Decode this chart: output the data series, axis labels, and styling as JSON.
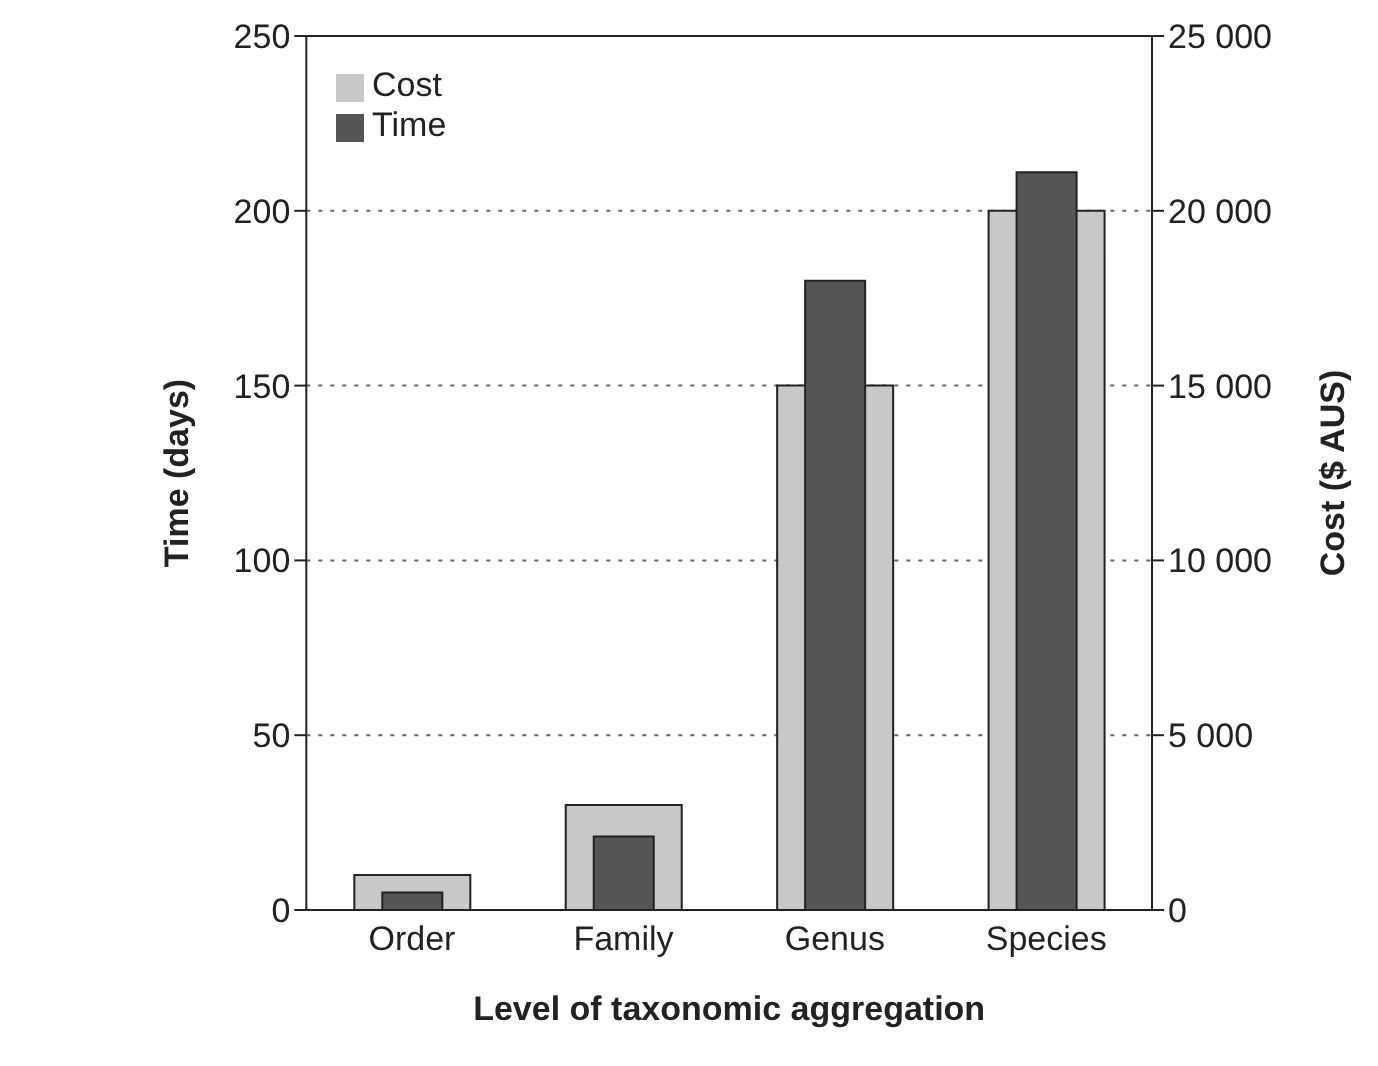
{
  "chart_data": {
    "type": "bar",
    "xlabel": "Level of taxonomic aggregation",
    "ylabel": "Time (days)",
    "y2label": "Cost ($ AUS)",
    "categories": [
      "Order",
      "Family",
      "Genus",
      "Species"
    ],
    "series": [
      {
        "name": "Cost",
        "color": "#c8c8c8",
        "values": [
          1000,
          3000,
          15000,
          20000
        ],
        "axis": "y2"
      },
      {
        "name": "Time",
        "color": "#555555",
        "values": [
          5,
          21,
          180,
          211
        ],
        "axis": "y"
      }
    ],
    "ylim": [
      0,
      250
    ],
    "yticks": [
      0,
      50,
      100,
      150,
      200,
      250
    ],
    "y2lim": [
      0,
      25000
    ],
    "y2ticks": [
      {
        "value": 0,
        "label": "0"
      },
      {
        "value": 5000,
        "label": "5 000"
      },
      {
        "value": 10000,
        "label": "10 000"
      },
      {
        "value": 15000,
        "label": "15 000"
      },
      {
        "value": 20000,
        "label": "20 000"
      },
      {
        "value": 25000,
        "label": "25 000"
      }
    ],
    "grid": "y",
    "legend": "top left"
  }
}
